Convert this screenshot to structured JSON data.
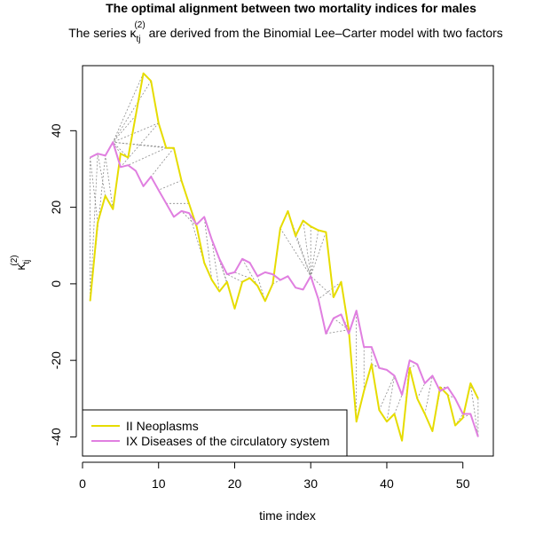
{
  "chart_data": {
    "type": "line",
    "title": "The optimal alignment between two mortality indices for males",
    "subtitle_prefix": "The series ",
    "subtitle_suffix": " are derived from the Binomial Lee–Carter model with two factors",
    "kappa_symbol": "κ",
    "kappa_subscript": "tj",
    "kappa_superscript": "(2)",
    "xlabel": "time index",
    "xlim": [
      0,
      54
    ],
    "ylim": [
      -45,
      57
    ],
    "xticks": [
      0,
      10,
      20,
      30,
      40,
      50
    ],
    "yticks": [
      -40,
      -20,
      0,
      20,
      40
    ],
    "grid": false,
    "legend_position": "bottom-left",
    "x": [
      1,
      2,
      3,
      4,
      5,
      6,
      7,
      8,
      9,
      10,
      11,
      12,
      13,
      14,
      15,
      16,
      17,
      18,
      19,
      20,
      21,
      22,
      23,
      24,
      25,
      26,
      27,
      28,
      29,
      30,
      31,
      32,
      33,
      34,
      35,
      36,
      37,
      38,
      39,
      40,
      41,
      42,
      43,
      44,
      45,
      46,
      47,
      48,
      49,
      50,
      51,
      52
    ],
    "series": [
      {
        "name": "II Neoplasms",
        "color": "#e6dc00",
        "values": [
          -4.5,
          16,
          23,
          19.5,
          34,
          33,
          44,
          55,
          53,
          42,
          35.5,
          35.5,
          27,
          21,
          15,
          5.5,
          1,
          -2,
          0.5,
          -6.5,
          0.5,
          1.5,
          -0.5,
          -4.5,
          0,
          14.5,
          19,
          12.5,
          16.5,
          15,
          14,
          13.5,
          -3.5,
          0.5,
          -12,
          -36,
          -28,
          -21,
          -33,
          -36,
          -34,
          -41,
          -22,
          -30,
          -34,
          -38.5,
          -27,
          -29,
          -37,
          -35,
          -26,
          -30
        ]
      },
      {
        "name": "IX Diseases of the circulatory system",
        "color": "#e07fe0",
        "values": [
          33,
          34,
          33.5,
          37,
          30.5,
          31,
          29.5,
          25.5,
          28,
          24.5,
          21,
          17.5,
          19,
          18.5,
          15.5,
          17.5,
          11.5,
          6.5,
          2.5,
          3,
          6.5,
          5.5,
          2,
          3,
          2.5,
          1,
          2,
          -1,
          -1.5,
          2,
          -4,
          -13,
          -9,
          -8,
          -13,
          -7,
          -16.5,
          -16.5,
          -22,
          -22.5,
          -24,
          -29,
          -20,
          -21,
          -26,
          -24,
          -28,
          -27,
          -30,
          -34,
          -34,
          -40
        ]
      }
    ],
    "alignment_pairs": [
      [
        1,
        1
      ],
      [
        1,
        2
      ],
      [
        1,
        3
      ],
      [
        2,
        1
      ],
      [
        3,
        2
      ],
      [
        4,
        3
      ],
      [
        5,
        4
      ],
      [
        6,
        4
      ],
      [
        7,
        4
      ],
      [
        8,
        4
      ],
      [
        9,
        4
      ],
      [
        10,
        4
      ],
      [
        11,
        4
      ],
      [
        12,
        4
      ],
      [
        10,
        5
      ],
      [
        11,
        6
      ],
      [
        12,
        8
      ],
      [
        13,
        10
      ],
      [
        14,
        11
      ],
      [
        15,
        13
      ],
      [
        16,
        14
      ],
      [
        16,
        15
      ],
      [
        17,
        16
      ],
      [
        18,
        17
      ],
      [
        19,
        17
      ],
      [
        20,
        18
      ],
      [
        21,
        19
      ],
      [
        22,
        20
      ],
      [
        23,
        21
      ],
      [
        24,
        23
      ],
      [
        25,
        26
      ],
      [
        26,
        30
      ],
      [
        27,
        30
      ],
      [
        28,
        30
      ],
      [
        29,
        30
      ],
      [
        30,
        30
      ],
      [
        31,
        30
      ],
      [
        32,
        30
      ],
      [
        33,
        30
      ],
      [
        34,
        31
      ],
      [
        35,
        32
      ],
      [
        35,
        33
      ],
      [
        35,
        34
      ],
      [
        35,
        35
      ],
      [
        36,
        36
      ],
      [
        37,
        37
      ],
      [
        38,
        38
      ],
      [
        38,
        39
      ],
      [
        38,
        40
      ],
      [
        39,
        41
      ],
      [
        40,
        41
      ],
      [
        41,
        42
      ],
      [
        42,
        43
      ],
      [
        43,
        44
      ],
      [
        44,
        45
      ],
      [
        45,
        46
      ],
      [
        46,
        47
      ],
      [
        47,
        48
      ],
      [
        48,
        49
      ],
      [
        49,
        50
      ],
      [
        50,
        51
      ],
      [
        51,
        52
      ],
      [
        52,
        52
      ]
    ]
  }
}
